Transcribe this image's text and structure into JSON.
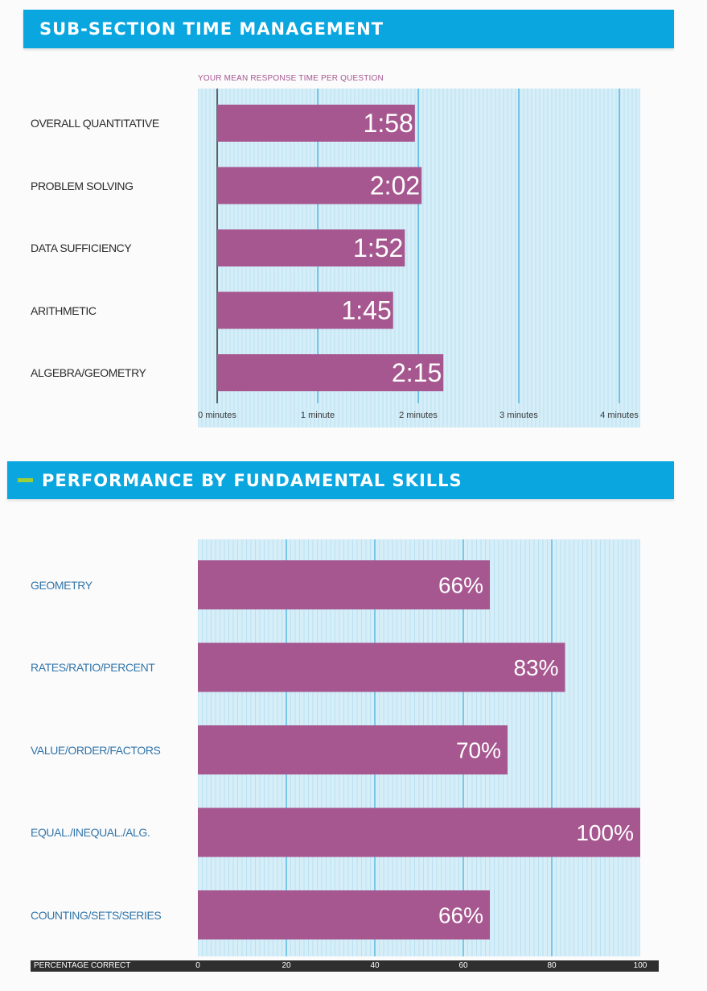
{
  "colors": {
    "header_bg": "#0aa6e0",
    "bar": "#a6578f",
    "plot_bg": "#d6eef8",
    "major_grid": "#1aa3d6",
    "minor_grid": "#a9d8ee"
  },
  "section1": {
    "title": "SUB-SECTION TIME MANAGEMENT",
    "chart_subtitle": "YOUR MEAN RESPONSE TIME PER QUESTION"
  },
  "section2": {
    "title": "PERFORMANCE BY FUNDAMENTAL SKILLS",
    "collapse_icon": "minus-icon"
  },
  "chart_data": [
    {
      "type": "bar",
      "orientation": "horizontal",
      "title": "YOUR MEAN RESPONSE TIME PER QUESTION",
      "categories": [
        "OVERALL QUANTITATIVE",
        "PROBLEM SOLVING",
        "DATA SUFFICIENCY",
        "ARITHMETIC",
        "ALGEBRA/GEOMETRY"
      ],
      "values_seconds": [
        118,
        122,
        112,
        105,
        135
      ],
      "data_labels": [
        "1:58",
        "2:02",
        "1:52",
        "1:45",
        "2:15"
      ],
      "xlim_seconds": [
        0,
        240
      ],
      "xticks_seconds": [
        0,
        60,
        120,
        180,
        240
      ],
      "xtick_labels": [
        "0 minutes",
        "1 minute",
        "2 minutes",
        "3 minutes",
        "4 minutes"
      ],
      "xlabel": "",
      "grid": true
    },
    {
      "type": "bar",
      "orientation": "horizontal",
      "title": "",
      "categories": [
        "GEOMETRY",
        "RATES/RATIO/PERCENT",
        "VALUE/ORDER/FACTORS",
        "EQUAL./INEQUAL./ALG.",
        "COUNTING/SETS/SERIES"
      ],
      "values": [
        66,
        83,
        70,
        100,
        66
      ],
      "data_labels": [
        "66%",
        "83%",
        "70%",
        "100%",
        "66%"
      ],
      "xlim": [
        0,
        100
      ],
      "xticks": [
        0,
        20,
        40,
        60,
        80,
        100
      ],
      "xtick_labels": [
        "0",
        "20",
        "40",
        "60",
        "80",
        "100"
      ],
      "xlabel": "PERCENTAGE CORRECT",
      "grid": true
    }
  ]
}
